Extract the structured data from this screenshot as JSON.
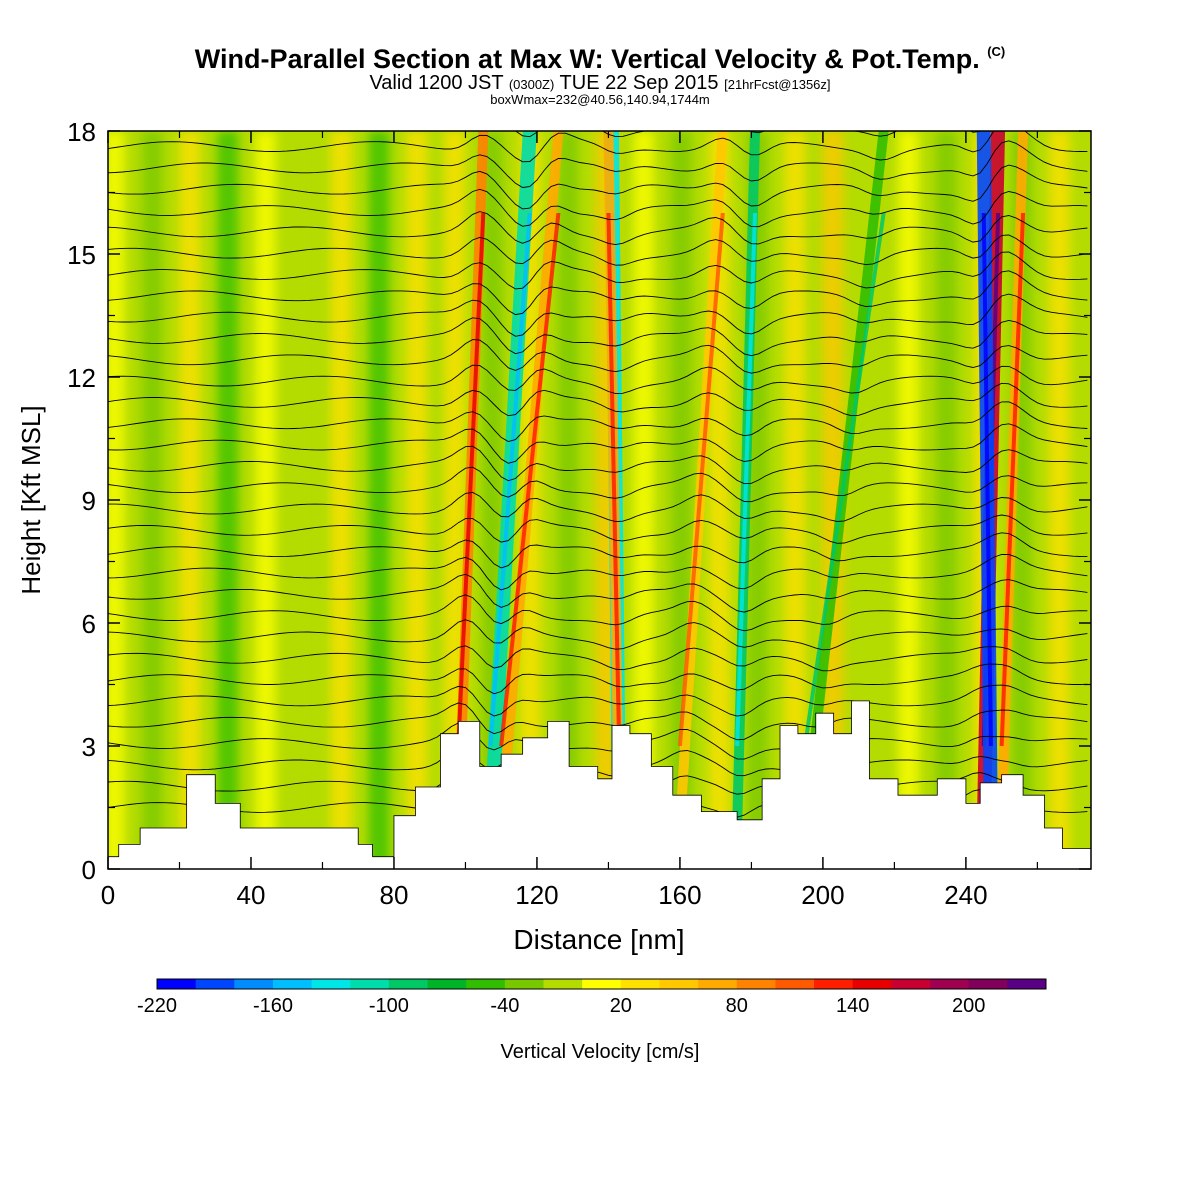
{
  "header": {
    "title_main": "Wind-Parallel Section at Max W: Vertical Velocity & Pot.Temp.",
    "title_c": "(C)",
    "valid_prefix": "Valid 1200 JST",
    "valid_utc": "(0300Z)",
    "valid_date": "TUE 22 Sep 2015",
    "forecast": "[21hrFcst@1356z]",
    "box_info": "boxWmax=232@40.56,140.94,1744m"
  },
  "chart_data": {
    "type": "heatmap",
    "xlabel": "Distance [nm]",
    "ylabel": "Height [Kft MSL]",
    "xlim": [
      0,
      275
    ],
    "ylim": [
      0,
      18
    ],
    "x_ticks": [
      0,
      40,
      80,
      120,
      160,
      200,
      240
    ],
    "y_ticks": [
      0,
      3,
      6,
      9,
      12,
      15,
      18
    ],
    "colorbar": {
      "label": "Vertical Velocity [cm/s]",
      "min": -220,
      "max": 240,
      "step": 20,
      "tick_labels": [
        "-220",
        "-160",
        "-100",
        "-40",
        "20",
        "80",
        "140",
        "200"
      ],
      "colors": [
        "#0000ff",
        "#0046ff",
        "#008cff",
        "#00beff",
        "#00e6e6",
        "#00dcaa",
        "#00c864",
        "#00b428",
        "#32be00",
        "#78c800",
        "#b4dc00",
        "#ffff00",
        "#ffe100",
        "#ffc800",
        "#ffaa00",
        "#ff8200",
        "#ff5a00",
        "#ff1e00",
        "#e60000",
        "#c80032",
        "#a00050",
        "#80005a",
        "#5a0082"
      ]
    },
    "features": [
      {
        "kind": "updraft",
        "x_bottom": 98,
        "x_top": 105,
        "w": 90
      },
      {
        "kind": "downdraft",
        "x_bottom": 107,
        "x_top": 118,
        "w": -120
      },
      {
        "kind": "updraft",
        "x_bottom": 110,
        "x_top": 126,
        "w": 60
      },
      {
        "kind": "downdraft",
        "x_bottom": 143,
        "x_top": 141,
        "w": -130
      },
      {
        "kind": "updraft",
        "x_bottom": 143,
        "x_top": 140,
        "w": 60
      },
      {
        "kind": "updraft",
        "x_bottom": 160,
        "x_top": 172,
        "w": 55
      },
      {
        "kind": "downdraft",
        "x_bottom": 176,
        "x_top": 181,
        "w": -90
      },
      {
        "kind": "downdraft",
        "x_bottom": 195,
        "x_top": 217,
        "w": -60
      },
      {
        "kind": "updraft",
        "x_bottom": 245,
        "x_top": 249,
        "w": 160
      },
      {
        "kind": "downdraft",
        "x_bottom": 247,
        "x_top": 245,
        "w": -200
      },
      {
        "kind": "updraft",
        "x_bottom": 250,
        "x_top": 256,
        "w": 60
      }
    ],
    "terrain": [
      [
        0,
        0.3
      ],
      [
        3,
        0.6
      ],
      [
        9,
        1.0
      ],
      [
        19,
        1.0
      ],
      [
        22,
        2.3
      ],
      [
        26,
        2.3
      ],
      [
        30,
        1.6
      ],
      [
        37,
        1.0
      ],
      [
        58,
        1.0
      ],
      [
        65,
        1.0
      ],
      [
        70,
        0.6
      ],
      [
        74,
        0.3
      ],
      [
        80,
        1.3
      ],
      [
        86,
        2.0
      ],
      [
        93,
        3.3
      ],
      [
        98,
        3.6
      ],
      [
        104,
        2.5
      ],
      [
        110,
        2.8
      ],
      [
        116,
        3.2
      ],
      [
        123,
        3.6
      ],
      [
        129,
        2.5
      ],
      [
        137,
        2.2
      ],
      [
        141,
        3.5
      ],
      [
        146,
        3.3
      ],
      [
        152,
        2.5
      ],
      [
        158,
        1.8
      ],
      [
        166,
        1.4
      ],
      [
        170,
        1.4
      ],
      [
        176,
        1.2
      ],
      [
        183,
        2.2
      ],
      [
        188,
        3.5
      ],
      [
        193,
        3.3
      ],
      [
        198,
        3.8
      ],
      [
        203,
        3.3
      ],
      [
        208,
        4.1
      ],
      [
        213,
        2.2
      ],
      [
        221,
        1.8
      ],
      [
        232,
        2.2
      ],
      [
        240,
        1.6
      ],
      [
        244,
        2.1
      ],
      [
        250,
        2.3
      ],
      [
        256,
        1.8
      ],
      [
        262,
        1.0
      ],
      [
        267,
        0.5
      ],
      [
        275,
        0.3
      ]
    ]
  }
}
